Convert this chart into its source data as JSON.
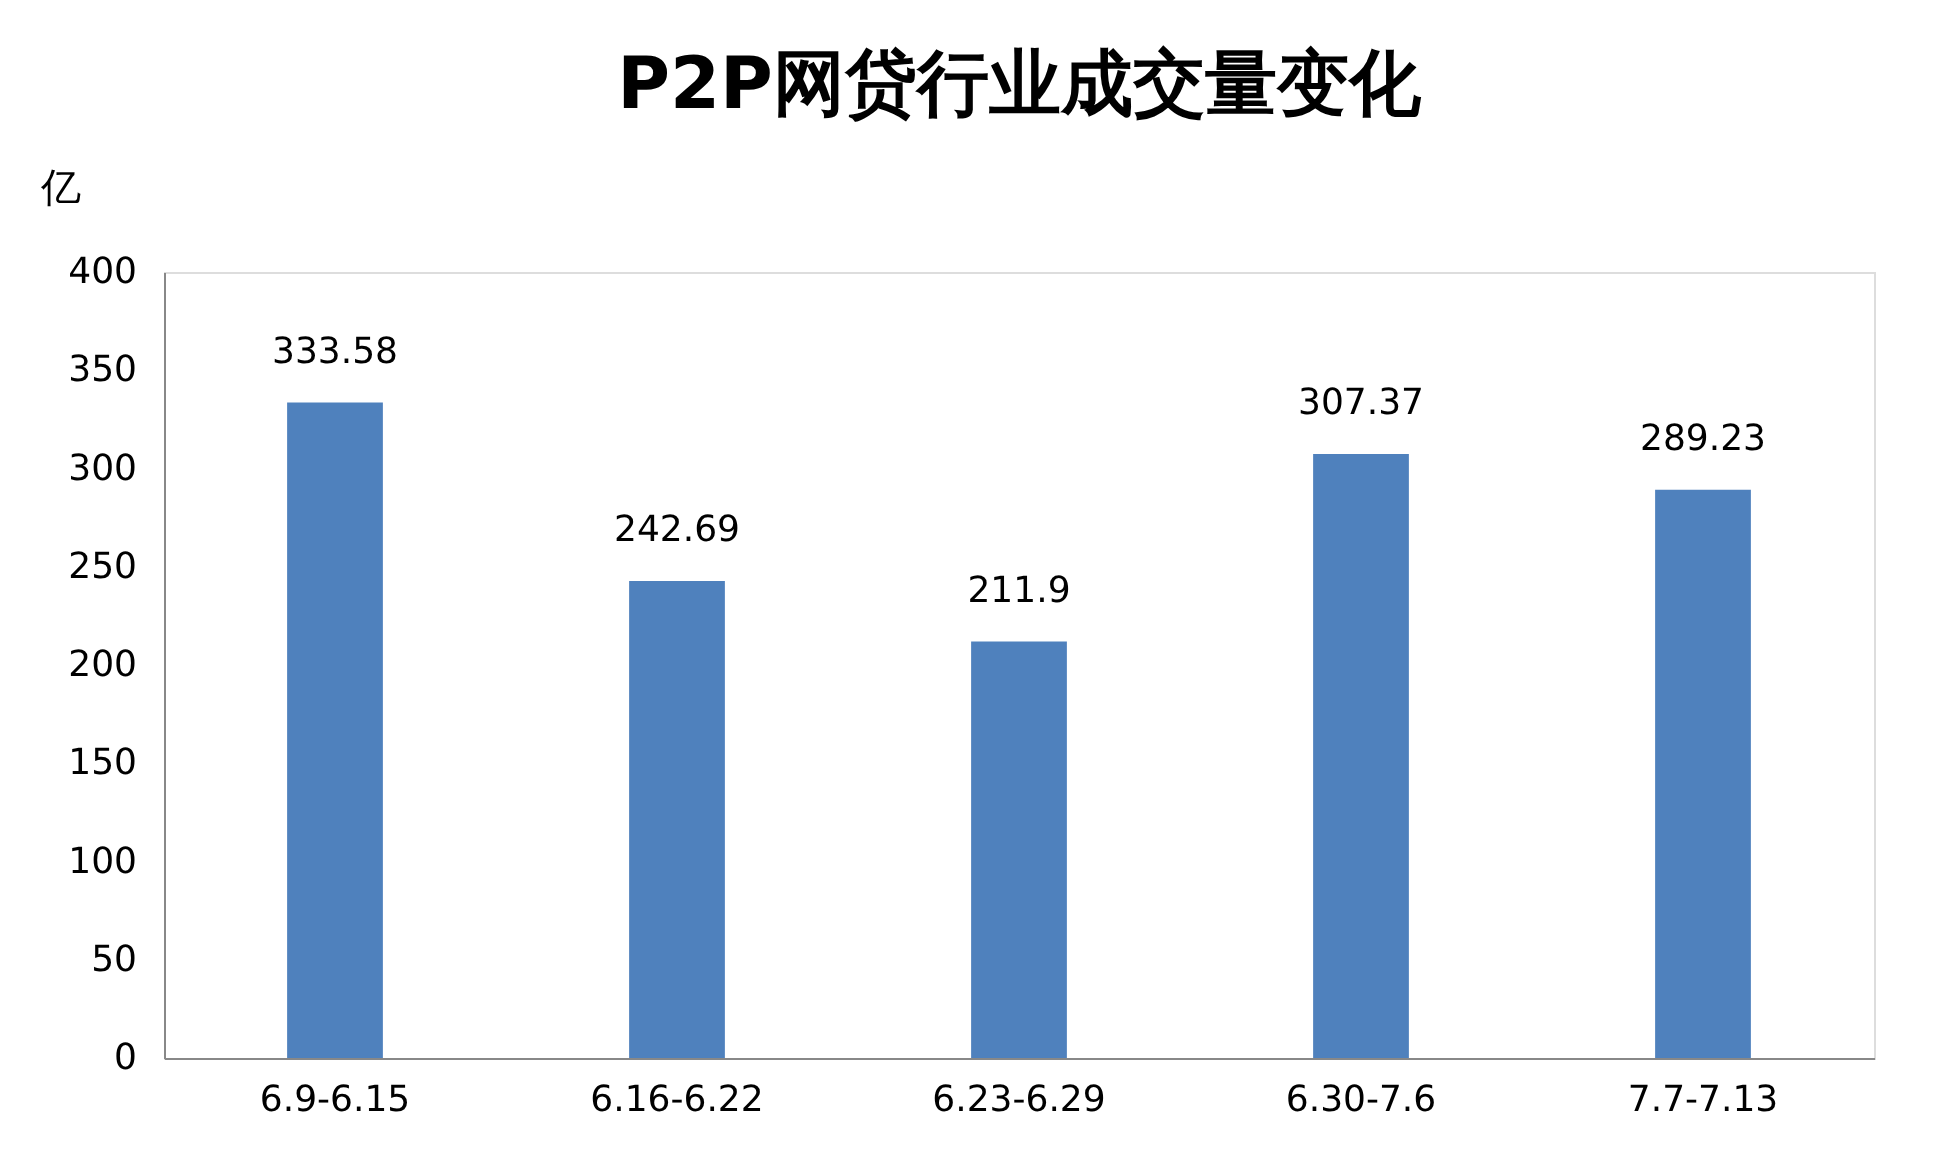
{
  "chart_data": {
    "type": "bar",
    "title": "P2P网贷行业成交量变化",
    "ylabel": "亿",
    "categories": [
      "6.9-6.15",
      "6.16-6.22",
      "6.23-6.29",
      "6.30-7.6",
      "7.7-7.13"
    ],
    "values": [
      333.58,
      242.69,
      211.9,
      307.37,
      289.23
    ],
    "color": "#4f81bd",
    "ylim": [
      0,
      400
    ],
    "yticks": [
      0,
      50,
      100,
      150,
      200,
      250,
      300,
      350,
      400
    ],
    "grid": false,
    "data_labels": true
  }
}
